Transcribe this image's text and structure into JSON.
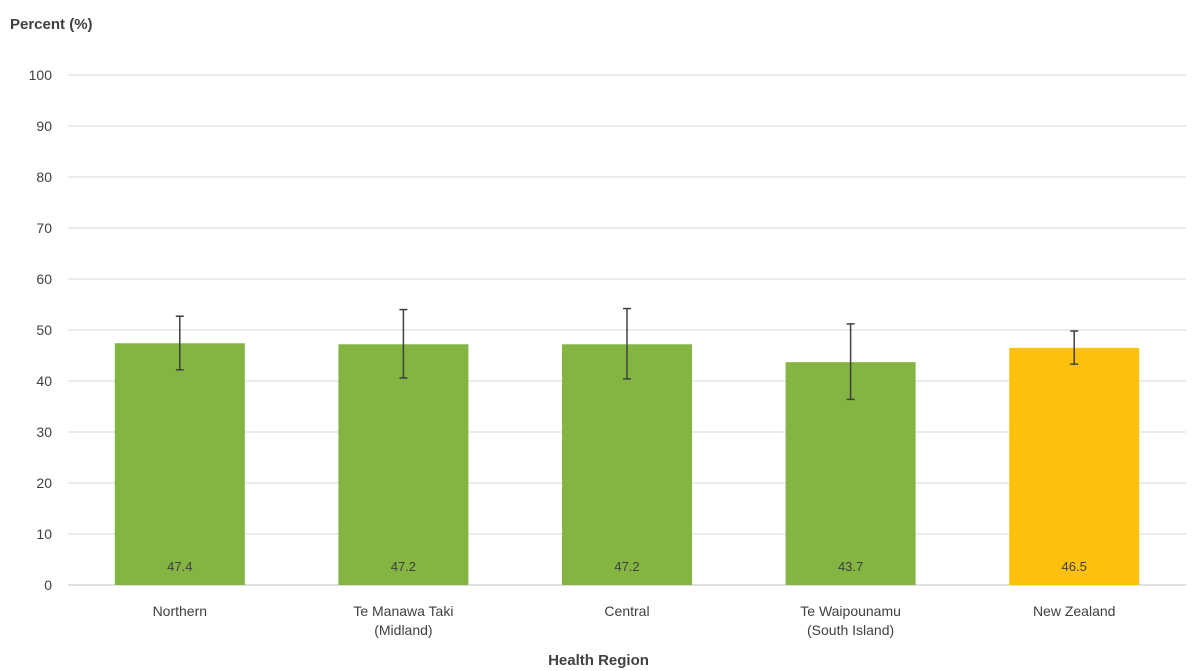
{
  "chart_data": {
    "type": "bar",
    "ylabel": "Percent (%)",
    "xlabel": "Health Region",
    "ylim": [
      0,
      100
    ],
    "yticks": [
      0,
      10,
      20,
      30,
      40,
      50,
      60,
      70,
      80,
      90,
      100
    ],
    "grid": true,
    "categories": [
      [
        "Northern"
      ],
      [
        "Te Manawa Taki",
        "(Midland)"
      ],
      [
        "Central"
      ],
      [
        "Te Waipounamu",
        "(South Island)"
      ],
      [
        "New Zealand"
      ]
    ],
    "values": [
      47.4,
      47.2,
      47.2,
      43.7,
      46.5
    ],
    "value_labels": [
      "47.4",
      "47.2",
      "47.2",
      "43.7",
      "46.5"
    ],
    "error_low": [
      42.2,
      40.6,
      40.4,
      36.4,
      43.3
    ],
    "error_high": [
      52.7,
      54.0,
      54.2,
      51.2,
      49.8
    ],
    "colors": [
      "#84b441",
      "#84b441",
      "#84b441",
      "#84b441",
      "#fec00f"
    ]
  }
}
